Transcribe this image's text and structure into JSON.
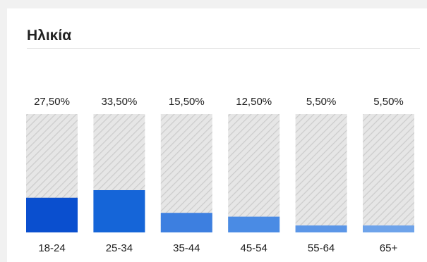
{
  "title": "Ηλικία",
  "chart_data": {
    "type": "bar",
    "title": "Ηλικία",
    "categories": [
      "18-24",
      "25-34",
      "35-44",
      "45-54",
      "55-64",
      "65+"
    ],
    "values": [
      27.5,
      33.5,
      15.5,
      12.5,
      5.5,
      5.5
    ],
    "value_labels": [
      "27,50%",
      "33,50%",
      "15,50%",
      "12,50%",
      "5,50%",
      "5,50%"
    ],
    "ylim": [
      0,
      100
    ],
    "xlabel": "",
    "ylabel": "",
    "grid": false,
    "legend": "none",
    "colors": {
      "bars": [
        "#0a4fcf",
        "#1565d8",
        "#3d7fe0",
        "#4a8be4",
        "#5b96e7",
        "#6ea3ea"
      ],
      "track": "#e4e4e4",
      "hatch": "#cfcfcf",
      "label": "#202020"
    }
  }
}
